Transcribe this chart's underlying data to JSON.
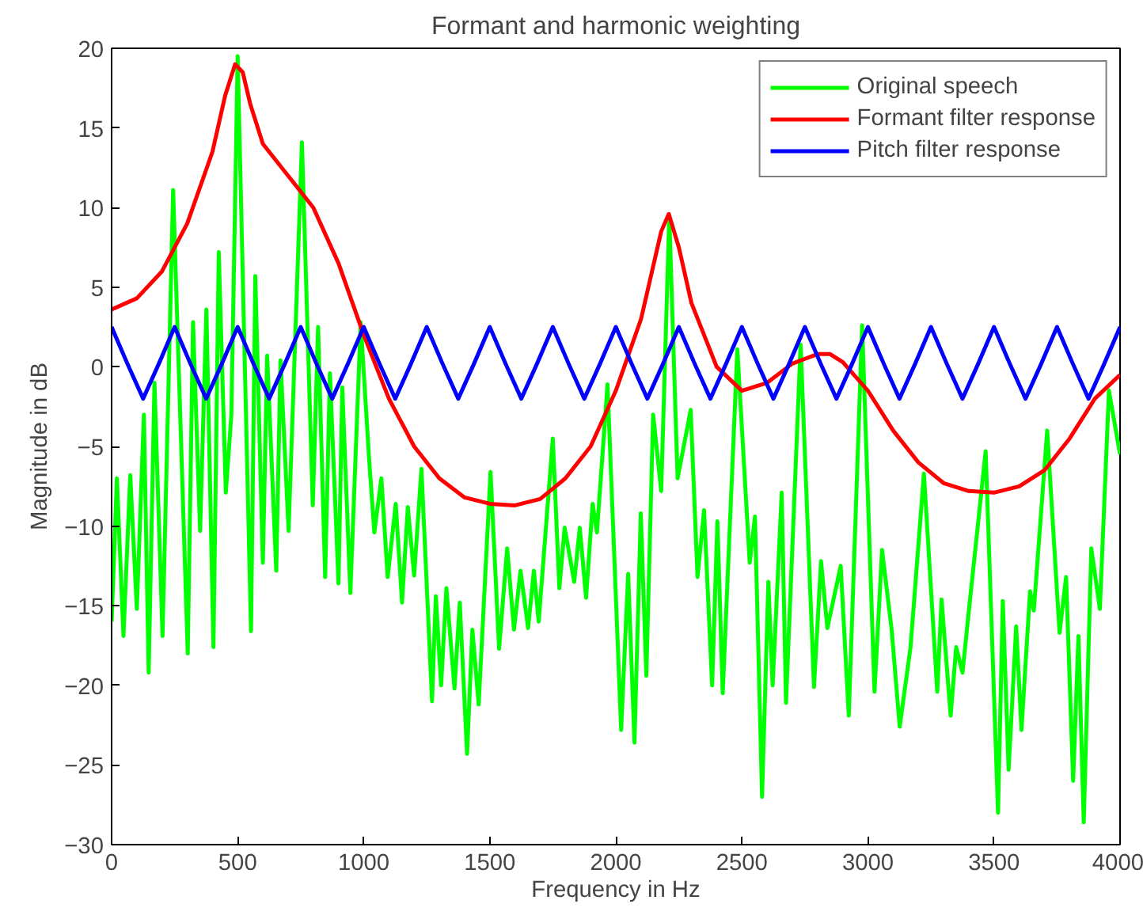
{
  "chart_data": {
    "type": "line",
    "title": "Formant and harmonic weighting",
    "xlabel": "Frequency in Hz",
    "ylabel": "Magnitude in dB",
    "xlim": [
      0,
      4000
    ],
    "ylim": [
      -30,
      20
    ],
    "xticks": [
      0,
      500,
      1000,
      1500,
      2000,
      2500,
      3000,
      3500,
      4000
    ],
    "yticks": [
      -30,
      -25,
      -20,
      -15,
      -10,
      -5,
      0,
      5,
      10,
      15,
      20
    ],
    "grid": false,
    "legend": "top right",
    "line_style": "solid",
    "marker": "none",
    "series": [
      {
        "name": "Original speech",
        "color": "#00ff00",
        "x": [
          0,
          21,
          47,
          74,
          100,
          128,
          147,
          170,
          202,
          244,
          302,
          323,
          351,
          376,
          404,
          425,
          453,
          475,
          500,
          553,
          570,
          600,
          617,
          653,
          670,
          702,
          755,
          798,
          819,
          847,
          866,
          900,
          915,
          947,
          988,
          1021,
          1042,
          1070,
          1095,
          1127,
          1152,
          1175,
          1200,
          1229,
          1271,
          1286,
          1307,
          1328,
          1360,
          1381,
          1410,
          1431,
          1456,
          1503,
          1537,
          1569,
          1596,
          1622,
          1652,
          1675,
          1694,
          1750,
          1776,
          1797,
          1835,
          1857,
          1882,
          1908,
          1925,
          1967,
          2021,
          2049,
          2074,
          2099,
          2121,
          2148,
          2180,
          2212,
          2245,
          2297,
          2324,
          2350,
          2382,
          2403,
          2424,
          2482,
          2531,
          2552,
          2580,
          2605,
          2622,
          2658,
          2675,
          2733,
          2786,
          2814,
          2839,
          2892,
          2924,
          2977,
          3026,
          3056,
          3094,
          3126,
          3169,
          3222,
          3275,
          3292,
          3328,
          3350,
          3375,
          3403,
          3467,
          3516,
          3535,
          3558,
          3588,
          3609,
          3643,
          3658,
          3711,
          3760,
          3786,
          3814,
          3835,
          3856,
          3886,
          3920,
          3956,
          4000
        ],
        "values": [
          -16,
          -7,
          -16.9,
          -6.8,
          -15.2,
          -3,
          -19.2,
          -1,
          -16.9,
          11.1,
          -18,
          2.8,
          -10.3,
          3.6,
          -17.6,
          7.2,
          -7.9,
          -3,
          19.5,
          -16.6,
          5.7,
          -12.3,
          0.7,
          -12.8,
          0.4,
          -10.3,
          14.1,
          -8.7,
          2.5,
          -13.2,
          -0.4,
          -13.6,
          -1.3,
          -14.2,
          2.8,
          -5.7,
          -10.4,
          -7,
          -13.2,
          -8.6,
          -14.8,
          -8.8,
          -13.1,
          -6.4,
          -21,
          -14.4,
          -20,
          -13.9,
          -20.2,
          -14.8,
          -24.3,
          -16.5,
          -21.2,
          -6.6,
          -17.7,
          -11.4,
          -16.5,
          -12.8,
          -16.4,
          -12.8,
          -16,
          -4.5,
          -13.9,
          -10.1,
          -13.5,
          -10.1,
          -14.5,
          -8.6,
          -10.4,
          -1.1,
          -22.8,
          -13,
          -23.6,
          -9.2,
          -19.4,
          -3,
          -7.8,
          9.5,
          -7,
          -2.7,
          -13.2,
          -9,
          -20,
          -9.7,
          -20.5,
          1.1,
          -12.3,
          -9.4,
          -27,
          -13.5,
          -20,
          -7.9,
          -21.1,
          1.4,
          -20.1,
          -12.2,
          -16.4,
          -12.5,
          -21.9,
          2.6,
          -20.4,
          -11.5,
          -16.5,
          -22.6,
          -17.6,
          -6.7,
          -20.4,
          -14.6,
          -21.9,
          -17.6,
          -19.2,
          -14.9,
          -5.3,
          -28,
          -14.7,
          -25.3,
          -16.3,
          -22.8,
          -14.1,
          -15.3,
          -4,
          -16.7,
          -13.2,
          -26,
          -16.9,
          -28.6,
          -11.4,
          -15.2,
          -1.5,
          -5.5
        ]
      },
      {
        "name": "Formant filter response",
        "color": "#ff0000",
        "x": [
          0,
          100,
          200,
          300,
          400,
          450,
          490,
          520,
          550,
          600,
          700,
          800,
          900,
          1000,
          1100,
          1200,
          1300,
          1400,
          1500,
          1600,
          1700,
          1800,
          1900,
          2000,
          2100,
          2180,
          2210,
          2250,
          2300,
          2400,
          2500,
          2600,
          2700,
          2800,
          2850,
          2900,
          3000,
          3100,
          3200,
          3300,
          3400,
          3500,
          3600,
          3700,
          3800,
          3900,
          4000
        ],
        "values": [
          3.6,
          4.3,
          6,
          9,
          13.5,
          17,
          19,
          18.5,
          16.5,
          14,
          12,
          10,
          6.5,
          2,
          -2,
          -5,
          -7,
          -8.2,
          -8.6,
          -8.7,
          -8.3,
          -7,
          -5,
          -1.5,
          3,
          8.5,
          9.6,
          7.5,
          4,
          0,
          -1.5,
          -1,
          0.2,
          0.8,
          0.8,
          0.3,
          -1.5,
          -4,
          -6,
          -7.3,
          -7.8,
          -7.9,
          -7.5,
          -6.5,
          -4.5,
          -2,
          -0.5
        ]
      },
      {
        "name": "Pitch filter response",
        "color": "#0000ff",
        "x": [
          0,
          62.5,
          125,
          187.5,
          250,
          312.5,
          375,
          437.5,
          500,
          562.5,
          625,
          687.5,
          750,
          812.5,
          875,
          937.5,
          1000,
          1062.5,
          1125,
          1187.5,
          1250,
          1312.5,
          1375,
          1437.5,
          1500,
          1562.5,
          1625,
          1687.5,
          1750,
          1812.5,
          1875,
          1937.5,
          2000,
          2062.5,
          2125,
          2187.5,
          2250,
          2312.5,
          2375,
          2437.5,
          2500,
          2562.5,
          2625,
          2687.5,
          2750,
          2812.5,
          2875,
          2937.5,
          3000,
          3062.5,
          3125,
          3187.5,
          3250,
          3312.5,
          3375,
          3437.5,
          3500,
          3562.5,
          3625,
          3687.5,
          3750,
          3812.5,
          3875,
          3937.5,
          4000
        ],
        "values": [
          2.5,
          0.2,
          -2,
          0.2,
          2.5,
          0.2,
          -2,
          0.2,
          2.5,
          0.2,
          -2,
          0.2,
          2.5,
          0.2,
          -2,
          0.2,
          2.5,
          0.2,
          -2,
          0.2,
          2.5,
          0.2,
          -2,
          0.2,
          2.5,
          0.2,
          -2,
          0.2,
          2.5,
          0.2,
          -2,
          0.2,
          2.5,
          0.2,
          -2,
          0.2,
          2.5,
          0.2,
          -2,
          0.2,
          2.5,
          0.2,
          -2,
          0.2,
          2.5,
          0.2,
          -2,
          0.2,
          2.5,
          0.2,
          -2,
          0.2,
          2.5,
          0.2,
          -2,
          0.2,
          2.5,
          0.2,
          -2,
          0.2,
          2.5,
          0.2,
          -2,
          0.2,
          2.5
        ]
      }
    ]
  }
}
